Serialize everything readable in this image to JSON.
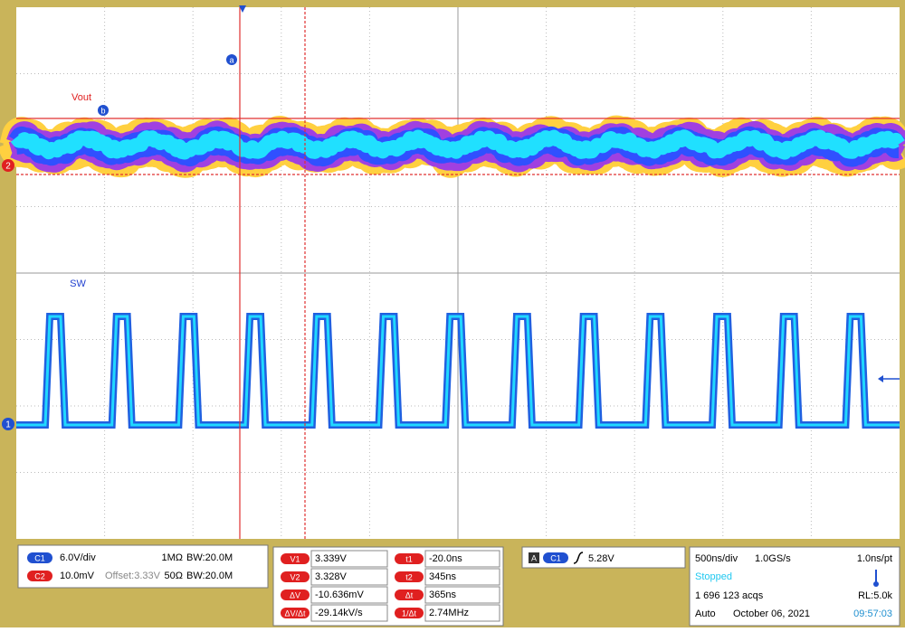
{
  "traces": {
    "ch2_label": "Vout",
    "ch1_label": "SW",
    "cursor_a": "a",
    "cursor_b": "b",
    "ch2_marker": "2",
    "ch1_marker": "1"
  },
  "channels": [
    {
      "badge": "C1",
      "scale": "6.0V/div",
      "impedance": "1MΩ",
      "bandwidth": "BW:20.0M"
    },
    {
      "badge": "C2",
      "scale": "10.0mV",
      "offset": "Offset:3.33V",
      "impedance": "50Ω",
      "bandwidth": "BW:20.0M"
    }
  ],
  "cursors": {
    "left": [
      [
        "V1",
        "3.339V"
      ],
      [
        "V2",
        "3.328V"
      ],
      [
        "ΔV",
        "-10.636mV"
      ],
      [
        "ΔV/Δt",
        "-29.14kV/s"
      ]
    ],
    "right": [
      [
        "t1",
        "-20.0ns"
      ],
      [
        "t2",
        "345ns"
      ],
      [
        "Δt",
        "365ns"
      ],
      [
        "1/Δt",
        "2.74MHz"
      ]
    ]
  },
  "trigger": {
    "mode_badge": "A",
    "source": "C1",
    "level": "5.28V"
  },
  "acquisition": {
    "timebase": "500ns/div",
    "sample_rate": "1.0GS/s",
    "resolution": "1.0ns/pt",
    "state": "Stopped",
    "acqs": "1 696 123 acqs",
    "record_length": "RL:5.0k",
    "mode": "Auto",
    "date": "October 06, 2021",
    "time": "09:57:03"
  }
}
